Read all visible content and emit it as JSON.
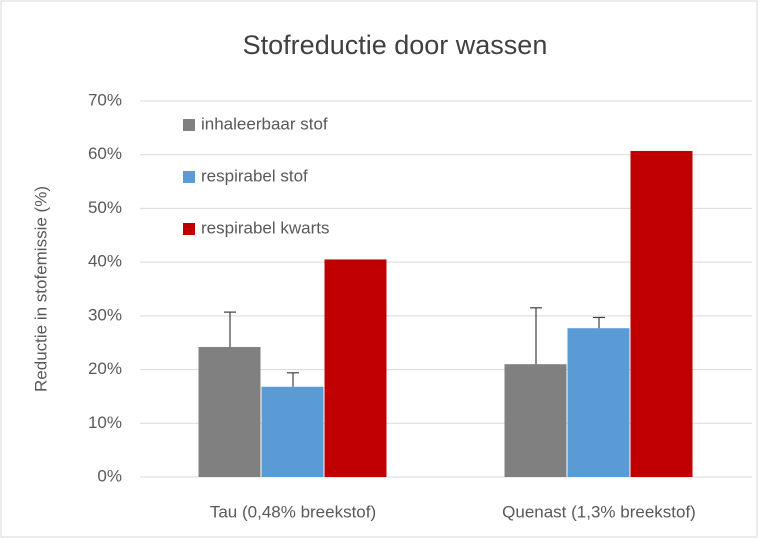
{
  "chart_data": {
    "type": "bar",
    "title": "Stofreductie door wassen",
    "y_label": "Reductie in stofemissie (%)",
    "categories": [
      "Tau (0,48% breekstof)",
      "Quenast (1,3% breekstof)"
    ],
    "series": [
      {
        "name": "inhaleerbaar stof",
        "color": "#808080",
        "values": [
          24.2,
          21
        ],
        "errors": [
          6.5,
          10.5
        ]
      },
      {
        "name": "respirabel stof",
        "color": "#5b9bd5",
        "values": [
          16.8,
          27.7
        ],
        "errors": [
          2.6,
          2
        ]
      },
      {
        "name": "respirabel kwarts",
        "color": "#c00000",
        "values": [
          40.5,
          60.7
        ]
      }
    ],
    "ylim": [
      0,
      70
    ],
    "yticks": [
      {
        "value": 0,
        "label": "0%"
      },
      {
        "value": 10,
        "label": "10%"
      },
      {
        "value": 20,
        "label": "20%"
      },
      {
        "value": 30,
        "label": "30%"
      },
      {
        "value": 40,
        "label": "40%"
      },
      {
        "value": 50,
        "label": "50%"
      },
      {
        "value": 60,
        "label": "60%"
      },
      {
        "value": 70,
        "label": "70%"
      }
    ],
    "grid": true,
    "legend": "upper left"
  }
}
